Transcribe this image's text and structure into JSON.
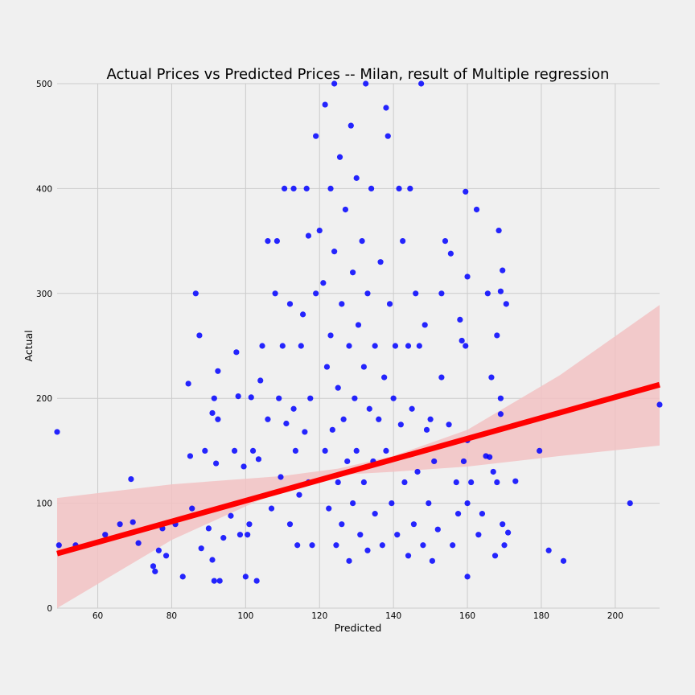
{
  "chart_data": {
    "type": "scatter",
    "title": "Actual Prices vs Predicted Prices -- Milan, result of Multiple regression",
    "xlabel": "Predicted",
    "ylabel": "Actual",
    "xlim": [
      49,
      212
    ],
    "ylim": [
      0,
      500
    ],
    "xticks": [
      60,
      80,
      100,
      120,
      140,
      160,
      180,
      200
    ],
    "yticks": [
      0,
      100,
      200,
      300,
      400,
      500
    ],
    "grid": true,
    "point_color": "#0000ff",
    "points": [
      [
        49,
        168
      ],
      [
        49.5,
        60
      ],
      [
        54,
        60
      ],
      [
        62,
        70
      ],
      [
        66,
        80
      ],
      [
        69,
        123
      ],
      [
        69.5,
        82
      ],
      [
        71,
        62
      ],
      [
        75,
        40
      ],
      [
        75.5,
        35
      ],
      [
        76.5,
        55
      ],
      [
        77.5,
        76
      ],
      [
        78.5,
        50
      ],
      [
        81,
        80
      ],
      [
        83,
        30
      ],
      [
        84.5,
        214
      ],
      [
        85,
        145
      ],
      [
        85.5,
        95
      ],
      [
        86.5,
        300
      ],
      [
        87.5,
        260
      ],
      [
        88,
        57
      ],
      [
        89,
        150
      ],
      [
        90,
        76
      ],
      [
        91,
        186
      ],
      [
        91,
        46
      ],
      [
        91.5,
        200
      ],
      [
        91.5,
        26
      ],
      [
        92,
        138
      ],
      [
        92.5,
        226
      ],
      [
        92.5,
        180
      ],
      [
        93,
        26
      ],
      [
        94,
        67
      ],
      [
        96,
        88
      ],
      [
        97,
        150
      ],
      [
        97.5,
        244
      ],
      [
        98,
        202
      ],
      [
        98.5,
        70
      ],
      [
        99.5,
        135
      ],
      [
        100,
        30
      ],
      [
        100.5,
        70
      ],
      [
        101,
        80
      ],
      [
        101.5,
        201
      ],
      [
        102,
        150
      ],
      [
        103,
        26
      ],
      [
        103.5,
        142
      ],
      [
        104,
        217
      ],
      [
        104.5,
        250
      ],
      [
        106,
        350
      ],
      [
        106,
        180
      ],
      [
        107,
        95
      ],
      [
        108,
        300
      ],
      [
        108.5,
        350
      ],
      [
        109,
        200
      ],
      [
        109.5,
        125
      ],
      [
        110,
        250
      ],
      [
        110.5,
        400
      ],
      [
        111,
        176
      ],
      [
        112,
        290
      ],
      [
        112,
        80
      ],
      [
        113,
        400
      ],
      [
        113,
        190
      ],
      [
        113.5,
        150
      ],
      [
        114,
        60
      ],
      [
        114.5,
        108
      ],
      [
        115,
        250
      ],
      [
        115.5,
        280
      ],
      [
        116,
        168
      ],
      [
        116.5,
        400
      ],
      [
        117,
        355
      ],
      [
        117,
        120
      ],
      [
        117.5,
        200
      ],
      [
        118,
        60
      ],
      [
        119,
        300
      ],
      [
        119,
        450
      ],
      [
        120,
        360
      ],
      [
        121,
        310
      ],
      [
        121.5,
        480
      ],
      [
        121.5,
        150
      ],
      [
        122,
        230
      ],
      [
        122.5,
        95
      ],
      [
        123,
        400
      ],
      [
        123,
        260
      ],
      [
        123.5,
        170
      ],
      [
        124,
        500
      ],
      [
        124,
        340
      ],
      [
        124.5,
        60
      ],
      [
        125,
        210
      ],
      [
        125,
        120
      ],
      [
        125.5,
        430
      ],
      [
        126,
        290
      ],
      [
        126,
        80
      ],
      [
        126.5,
        180
      ],
      [
        127,
        380
      ],
      [
        127.5,
        140
      ],
      [
        128,
        250
      ],
      [
        128,
        45
      ],
      [
        128.5,
        460
      ],
      [
        129,
        320
      ],
      [
        129,
        100
      ],
      [
        129.5,
        200
      ],
      [
        130,
        410
      ],
      [
        130,
        150
      ],
      [
        130.5,
        270
      ],
      [
        131,
        70
      ],
      [
        131.5,
        350
      ],
      [
        132,
        230
      ],
      [
        132,
        120
      ],
      [
        132.5,
        500
      ],
      [
        133,
        300
      ],
      [
        133,
        55
      ],
      [
        133.5,
        190
      ],
      [
        134,
        400
      ],
      [
        134.5,
        140
      ],
      [
        135,
        250
      ],
      [
        135,
        90
      ],
      [
        136,
        180
      ],
      [
        136.5,
        330
      ],
      [
        137,
        60
      ],
      [
        137.5,
        220
      ],
      [
        138,
        477
      ],
      [
        138,
        150
      ],
      [
        138.5,
        450
      ],
      [
        139,
        290
      ],
      [
        139.5,
        100
      ],
      [
        140,
        200
      ],
      [
        140.5,
        250
      ],
      [
        141,
        70
      ],
      [
        141.5,
        400
      ],
      [
        142,
        175
      ],
      [
        142.5,
        350
      ],
      [
        143,
        120
      ],
      [
        144,
        250
      ],
      [
        144,
        50
      ],
      [
        144.5,
        400
      ],
      [
        145,
        190
      ],
      [
        145.5,
        80
      ],
      [
        146,
        300
      ],
      [
        146.5,
        130
      ],
      [
        147,
        250
      ],
      [
        147.5,
        500
      ],
      [
        148,
        60
      ],
      [
        148.5,
        270
      ],
      [
        149,
        170
      ],
      [
        149.5,
        100
      ],
      [
        150,
        180
      ],
      [
        150.5,
        45
      ],
      [
        151,
        140
      ],
      [
        152,
        75
      ],
      [
        153,
        220
      ],
      [
        153,
        300
      ],
      [
        154,
        350
      ],
      [
        155,
        175
      ],
      [
        155.5,
        338
      ],
      [
        156,
        60
      ],
      [
        157,
        120
      ],
      [
        157.5,
        90
      ],
      [
        158,
        275
      ],
      [
        158.5,
        255
      ],
      [
        159,
        140
      ],
      [
        159.5,
        250
      ],
      [
        159.5,
        397
      ],
      [
        160,
        316
      ],
      [
        160,
        160
      ],
      [
        160,
        100
      ],
      [
        160,
        30
      ],
      [
        161,
        120
      ],
      [
        162.5,
        380
      ],
      [
        163,
        70
      ],
      [
        164,
        90
      ],
      [
        165,
        145
      ],
      [
        165.5,
        300
      ],
      [
        166,
        144
      ],
      [
        166.5,
        220
      ],
      [
        167,
        130
      ],
      [
        167.5,
        50
      ],
      [
        168,
        120
      ],
      [
        168,
        260
      ],
      [
        168.5,
        360
      ],
      [
        169,
        200
      ],
      [
        169,
        302
      ],
      [
        169,
        185
      ],
      [
        169.5,
        322
      ],
      [
        169.5,
        80
      ],
      [
        170,
        60
      ],
      [
        170.5,
        290
      ],
      [
        171,
        72
      ],
      [
        173,
        121
      ],
      [
        179.5,
        150
      ],
      [
        182,
        55
      ],
      [
        186,
        45
      ],
      [
        204,
        100
      ],
      [
        212,
        194
      ]
    ],
    "regression": {
      "color": "#ff0000",
      "ci_color": "#f2c2c3",
      "line": [
        [
          49,
          52
        ],
        [
          212,
          213
        ]
      ],
      "ci_upper": [
        [
          49,
          105
        ],
        [
          80,
          118
        ],
        [
          110,
          126
        ],
        [
          125,
          133
        ],
        [
          140,
          145
        ],
        [
          160,
          170
        ],
        [
          185,
          222
        ],
        [
          212,
          289
        ]
      ],
      "ci_lower": [
        [
          49,
          0
        ],
        [
          80,
          65
        ],
        [
          110,
          113
        ],
        [
          125,
          127
        ],
        [
          140,
          130
        ],
        [
          160,
          135
        ],
        [
          185,
          145
        ],
        [
          212,
          155
        ]
      ]
    }
  }
}
